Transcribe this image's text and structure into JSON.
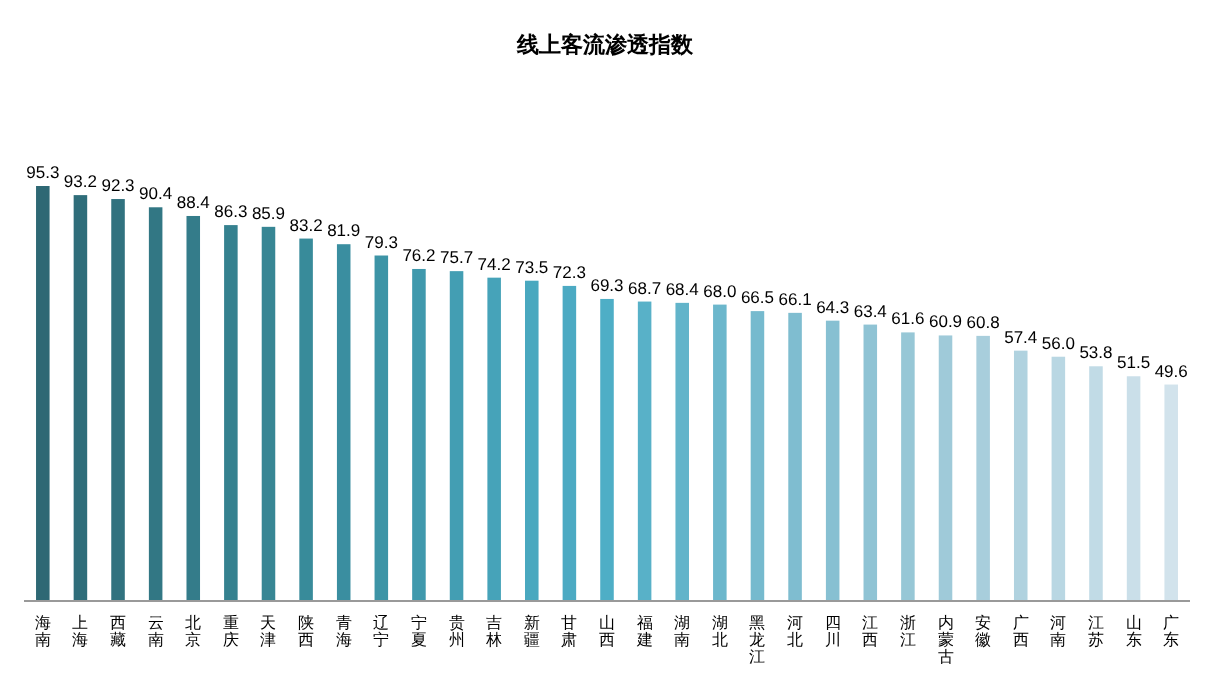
{
  "chart_data": {
    "type": "bar",
    "title": "线上客流渗透指数",
    "categories": [
      "海南",
      "上海",
      "西藏",
      "云南",
      "北京",
      "重庆",
      "天津",
      "陕西",
      "青海",
      "辽宁",
      "宁夏",
      "贵州",
      "吉林",
      "新疆",
      "甘肃",
      "山西",
      "福建",
      "湖南",
      "湖北",
      "黑龙江",
      "河北",
      "四川",
      "江西",
      "浙江",
      "内蒙古",
      "安徽",
      "广西",
      "河南",
      "江苏",
      "山东",
      "广东"
    ],
    "values": [
      95.3,
      93.2,
      92.3,
      90.4,
      88.4,
      86.3,
      85.9,
      83.2,
      81.9,
      79.3,
      76.2,
      75.7,
      74.2,
      73.5,
      72.3,
      69.3,
      68.7,
      68.4,
      68.0,
      66.5,
      66.1,
      64.3,
      63.4,
      61.6,
      60.9,
      60.8,
      57.4,
      56.0,
      53.8,
      51.5,
      49.6
    ],
    "value_labels": [
      "95.3",
      "93.2",
      "92.3",
      "90.4",
      "88.4",
      "86.3",
      "85.9",
      "83.2",
      "81.9",
      "79.3",
      "76.2",
      "75.7",
      "74.2",
      "73.5",
      "72.3",
      "69.3",
      "68.7",
      "68.4",
      "68.0",
      "66.5",
      "66.1",
      "64.3",
      "63.4",
      "61.6",
      "60.9",
      "60.8",
      "57.4",
      "56.0",
      "53.8",
      "51.5",
      "49.6"
    ],
    "colors": [
      "#2e6874",
      "#2f6d7a",
      "#31727f",
      "#327784",
      "#347c8a",
      "#35818f",
      "#378694",
      "#388b9a",
      "#3a8ea0",
      "#3d94a6",
      "#4099ad",
      "#439eb3",
      "#46a3b9",
      "#49a8bf",
      "#4caac3",
      "#4eaec6",
      "#58b1c8",
      "#62b4ca",
      "#6cb7cc",
      "#76bace",
      "#7fbdd0",
      "#87c0d2",
      "#8fc3d4",
      "#97c7d6",
      "#9fcad9",
      "#a8cedc",
      "#b0d2df",
      "#b9d7e3",
      "#c1dbe6",
      "#cadfe9",
      "#d2e3ec"
    ],
    "data_labels": false
  }
}
